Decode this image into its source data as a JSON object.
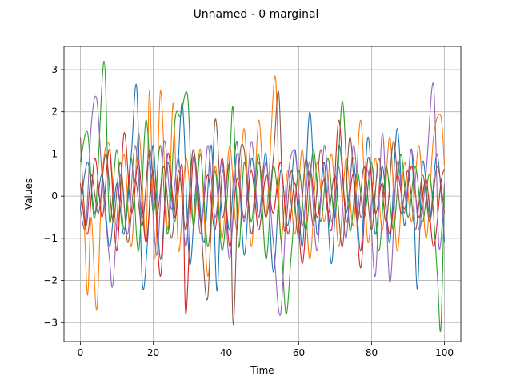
{
  "chart_data": {
    "type": "line",
    "title": "Unnamed - 0 marginal",
    "xlabel": "Time",
    "ylabel": "Values",
    "xlim": [
      -4.5,
      104.5
    ],
    "ylim": [
      -3.45,
      3.55
    ],
    "xticks": [
      0,
      20,
      40,
      60,
      80,
      100
    ],
    "yticks": [
      -3,
      -2,
      -1,
      0,
      1,
      2,
      3
    ],
    "grid": true,
    "legend": "none",
    "series": [
      {
        "color": "#1f77b4",
        "points": [
          [
            0,
            -0.3
          ],
          [
            2,
            0.8
          ],
          [
            4,
            -0.4
          ],
          [
            6,
            0.5
          ],
          [
            8,
            -1.2
          ],
          [
            10,
            0.3
          ],
          [
            12,
            -0.9
          ],
          [
            14,
            1.0
          ],
          [
            15.5,
            2.55
          ],
          [
            17,
            -2.05
          ],
          [
            18.5,
            -1.0
          ],
          [
            20,
            1.2
          ],
          [
            22,
            -1.5
          ],
          [
            24,
            0.8
          ],
          [
            26,
            -0.6
          ],
          [
            28,
            2.2
          ],
          [
            30,
            -1.6
          ],
          [
            32,
            0.4
          ],
          [
            34,
            -1.1
          ],
          [
            36,
            1.2
          ],
          [
            37.5,
            -2.25
          ],
          [
            39,
            0.6
          ],
          [
            41,
            -0.8
          ],
          [
            43,
            1.3
          ],
          [
            45,
            -1.4
          ],
          [
            47,
            0.9
          ],
          [
            49,
            -0.5
          ],
          [
            51,
            1.0
          ],
          [
            53,
            -1.8
          ],
          [
            55,
            0.6
          ],
          [
            57,
            -0.7
          ],
          [
            59,
            1.1
          ],
          [
            61,
            -1.2
          ],
          [
            63,
            2.0
          ],
          [
            65,
            -0.9
          ],
          [
            67,
            0.8
          ],
          [
            69,
            -1.6
          ],
          [
            71,
            1.2
          ],
          [
            73,
            -0.4
          ],
          [
            75,
            0.9
          ],
          [
            77,
            -1.3
          ],
          [
            79,
            1.4
          ],
          [
            81,
            -0.9
          ],
          [
            83,
            0.7
          ],
          [
            85,
            -1.1
          ],
          [
            87,
            1.6
          ],
          [
            89,
            -0.7
          ],
          [
            91,
            1.1
          ],
          [
            92.5,
            -2.2
          ],
          [
            94,
            0.8
          ],
          [
            96,
            -0.5
          ],
          [
            98,
            1.0
          ],
          [
            100,
            -1.1
          ]
        ]
      },
      {
        "color": "#ff7f0e",
        "points": [
          [
            0,
            0.3
          ],
          [
            1,
            -0.6
          ],
          [
            2,
            -2.35
          ],
          [
            3,
            -0.5
          ],
          [
            4.5,
            -2.7
          ],
          [
            6,
            0.5
          ],
          [
            8,
            1.2
          ],
          [
            10,
            -0.8
          ],
          [
            12,
            1.0
          ],
          [
            14,
            -1.2
          ],
          [
            16,
            1.5
          ],
          [
            18,
            -1.0
          ],
          [
            19,
            2.5
          ],
          [
            20.5,
            -1.5
          ],
          [
            22,
            2.5
          ],
          [
            24,
            -0.8
          ],
          [
            25.5,
            2.2
          ],
          [
            27,
            -1.3
          ],
          [
            29,
            0.9
          ],
          [
            31,
            -0.6
          ],
          [
            33,
            1.1
          ],
          [
            35,
            -1.9
          ],
          [
            37,
            0.7
          ],
          [
            39,
            -1.0
          ],
          [
            41,
            1.2
          ],
          [
            43,
            -0.8
          ],
          [
            45,
            1.6
          ],
          [
            47,
            -1.2
          ],
          [
            49,
            1.8
          ],
          [
            51,
            -0.5
          ],
          [
            53.5,
            2.85
          ],
          [
            55,
            -1.0
          ],
          [
            57,
            0.6
          ],
          [
            59,
            -0.9
          ],
          [
            61,
            1.1
          ],
          [
            63,
            -1.5
          ],
          [
            65,
            0.8
          ],
          [
            67,
            -0.6
          ],
          [
            69,
            1.0
          ],
          [
            71,
            -1.2
          ],
          [
            73,
            0.9
          ],
          [
            75,
            -0.7
          ],
          [
            77,
            1.8
          ],
          [
            79,
            -1.1
          ],
          [
            81,
            0.9
          ],
          [
            83,
            -0.8
          ],
          [
            85,
            1.4
          ],
          [
            87,
            -1.3
          ],
          [
            89,
            0.8
          ],
          [
            91,
            -0.6
          ],
          [
            93,
            1.2
          ],
          [
            95,
            -1.0
          ],
          [
            97,
            1.4
          ],
          [
            99,
            1.9
          ],
          [
            100,
            0.7
          ]
        ]
      },
      {
        "color": "#2ca02c",
        "points": [
          [
            0,
            0.8
          ],
          [
            2,
            1.5
          ],
          [
            4,
            -0.5
          ],
          [
            6.5,
            3.2
          ],
          [
            8,
            -0.6
          ],
          [
            10,
            1.1
          ],
          [
            12,
            -0.8
          ],
          [
            14,
            0.9
          ],
          [
            16,
            -1.3
          ],
          [
            18,
            1.8
          ],
          [
            20,
            -0.4
          ],
          [
            22,
            1.2
          ],
          [
            24,
            -0.9
          ],
          [
            26,
            1.8
          ],
          [
            27.5,
            1.9
          ],
          [
            29.5,
            2.35
          ],
          [
            31,
            -0.7
          ],
          [
            33,
            1.0
          ],
          [
            35,
            -1.2
          ],
          [
            37,
            0.6
          ],
          [
            39,
            -1.3
          ],
          [
            41,
            0.9
          ],
          [
            42,
            2.05
          ],
          [
            43.5,
            -1.2
          ],
          [
            45,
            0.8
          ],
          [
            47,
            -0.6
          ],
          [
            49,
            1.0
          ],
          [
            51,
            -1.5
          ],
          [
            53,
            0.7
          ],
          [
            55,
            -0.9
          ],
          [
            56.5,
            -2.8
          ],
          [
            58,
            -1.3
          ],
          [
            60,
            0.6
          ],
          [
            62,
            -0.8
          ],
          [
            64,
            1.1
          ],
          [
            66,
            -0.6
          ],
          [
            68,
            0.9
          ],
          [
            70,
            -0.5
          ],
          [
            72,
            2.25
          ],
          [
            74,
            -0.8
          ],
          [
            76,
            0.6
          ],
          [
            78,
            -0.5
          ],
          [
            80,
            0.8
          ],
          [
            82,
            -1.3
          ],
          [
            84,
            0.7
          ],
          [
            86,
            -0.8
          ],
          [
            88,
            1.0
          ],
          [
            90,
            -0.5
          ],
          [
            92,
            0.7
          ],
          [
            94,
            -0.6
          ],
          [
            96,
            0.5
          ],
          [
            98,
            -1.8
          ],
          [
            99,
            -3.15
          ],
          [
            100,
            0.2
          ]
        ]
      },
      {
        "color": "#d62728",
        "points": [
          [
            0,
            0.3
          ],
          [
            2,
            -0.9
          ],
          [
            4,
            0.9
          ],
          [
            6,
            -0.5
          ],
          [
            8,
            1.1
          ],
          [
            10,
            -1.3
          ],
          [
            12,
            1.5
          ],
          [
            14,
            -0.4
          ],
          [
            16,
            0.8
          ],
          [
            18,
            -1.1
          ],
          [
            20,
            0.6
          ],
          [
            22,
            -1.9
          ],
          [
            24,
            1.0
          ],
          [
            26,
            -0.5
          ],
          [
            28,
            0.7
          ],
          [
            29,
            -2.8
          ],
          [
            31,
            0.9
          ],
          [
            33,
            -0.6
          ],
          [
            35,
            0.5
          ],
          [
            37,
            -0.8
          ],
          [
            39,
            0.9
          ],
          [
            41,
            -1.2
          ],
          [
            43,
            0.4
          ],
          [
            45,
            -0.5
          ],
          [
            47,
            0.6
          ],
          [
            49,
            -0.8
          ],
          [
            51,
            0.5
          ],
          [
            53,
            -0.4
          ],
          [
            55,
            0.8
          ],
          [
            57,
            -0.9
          ],
          [
            59,
            0.3
          ],
          [
            61,
            -1.6
          ],
          [
            63,
            0.6
          ],
          [
            65,
            -0.5
          ],
          [
            67,
            0.4
          ],
          [
            69,
            -0.8
          ],
          [
            71,
            1.8
          ],
          [
            73,
            -0.6
          ],
          [
            75,
            0.5
          ],
          [
            77,
            -1.7
          ],
          [
            79,
            0.9
          ],
          [
            81,
            -0.4
          ],
          [
            83,
            0.3
          ],
          [
            85,
            -0.9
          ],
          [
            87,
            0.5
          ],
          [
            89,
            -0.3
          ],
          [
            91,
            0.7
          ],
          [
            93,
            -0.5
          ],
          [
            95,
            0.4
          ],
          [
            97,
            -1.2
          ],
          [
            99,
            0.3
          ],
          [
            100,
            0.65
          ]
        ]
      },
      {
        "color": "#9467bd",
        "points": [
          [
            0,
            -0.3
          ],
          [
            1.5,
            -0.7
          ],
          [
            3,
            1.7
          ],
          [
            4.5,
            2.3
          ],
          [
            6,
            0.4
          ],
          [
            8,
            -1.5
          ],
          [
            9,
            -2.05
          ],
          [
            11,
            0.5
          ],
          [
            13,
            -0.9
          ],
          [
            15,
            1.2
          ],
          [
            17,
            -0.5
          ],
          [
            19,
            0.8
          ],
          [
            21,
            -1.4
          ],
          [
            23,
            1.3
          ],
          [
            25,
            -0.3
          ],
          [
            27,
            0.9
          ],
          [
            29,
            -1.2
          ],
          [
            31,
            1.1
          ],
          [
            33,
            -0.9
          ],
          [
            35,
            1.2
          ],
          [
            37,
            -0.5
          ],
          [
            39,
            0.8
          ],
          [
            41,
            -1.5
          ],
          [
            43,
            1.0
          ],
          [
            45,
            -0.6
          ],
          [
            47,
            1.3
          ],
          [
            49,
            -0.5
          ],
          [
            51,
            0.8
          ],
          [
            53,
            -1.1
          ],
          [
            55,
            -2.8
          ],
          [
            57,
            0.4
          ],
          [
            59,
            1.0
          ],
          [
            61,
            -0.7
          ],
          [
            63,
            0.8
          ],
          [
            65,
            -1.3
          ],
          [
            67,
            1.2
          ],
          [
            69,
            -0.6
          ],
          [
            71,
            0.7
          ],
          [
            73,
            -1.0
          ],
          [
            75,
            1.2
          ],
          [
            77,
            -0.5
          ],
          [
            79,
            0.6
          ],
          [
            81,
            -1.9
          ],
          [
            83,
            1.5
          ],
          [
            85,
            -2.05
          ],
          [
            87,
            0.8
          ],
          [
            89,
            -0.4
          ],
          [
            91,
            1.1
          ],
          [
            93,
            -0.8
          ],
          [
            95,
            0.6
          ],
          [
            97,
            2.65
          ],
          [
            98.5,
            -1.2
          ],
          [
            100,
            0.3
          ]
        ]
      },
      {
        "color": "#8c564b",
        "points": [
          [
            0,
            1.4
          ],
          [
            1.5,
            -0.7
          ],
          [
            3,
            0.5
          ],
          [
            5,
            -0.4
          ],
          [
            7,
            1.0
          ],
          [
            9,
            -0.6
          ],
          [
            11,
            0.8
          ],
          [
            13,
            -1.1
          ],
          [
            15,
            0.4
          ],
          [
            17,
            -0.7
          ],
          [
            19,
            1.1
          ],
          [
            21,
            -0.4
          ],
          [
            23,
            0.7
          ],
          [
            25,
            -1.0
          ],
          [
            27,
            0.6
          ],
          [
            29,
            -0.8
          ],
          [
            31,
            1.1
          ],
          [
            33,
            -0.6
          ],
          [
            35,
            -2.4
          ],
          [
            37,
            1.8
          ],
          [
            39,
            -0.5
          ],
          [
            41,
            0.7
          ],
          [
            42,
            -3.05
          ],
          [
            43.5,
            0.6
          ],
          [
            45,
            1.1
          ],
          [
            47,
            -0.9
          ],
          [
            49,
            0.8
          ],
          [
            51,
            -0.5
          ],
          [
            53,
            0.9
          ],
          [
            54.5,
            2.45
          ],
          [
            56,
            -0.8
          ],
          [
            58,
            0.6
          ],
          [
            60,
            -1.0
          ],
          [
            62,
            0.9
          ],
          [
            64,
            -0.7
          ],
          [
            66,
            1.1
          ],
          [
            68,
            -0.4
          ],
          [
            70,
            0.5
          ],
          [
            72,
            -1.2
          ],
          [
            74,
            1.4
          ],
          [
            76,
            -0.6
          ],
          [
            78,
            0.7
          ],
          [
            80,
            -0.8
          ],
          [
            82,
            0.9
          ],
          [
            84,
            -0.6
          ],
          [
            86,
            1.3
          ],
          [
            88,
            -0.4
          ],
          [
            90,
            0.6
          ],
          [
            92,
            -0.8
          ],
          [
            94,
            0.5
          ],
          [
            96,
            -0.6
          ],
          [
            98,
            0.7
          ],
          [
            100,
            -0.4
          ]
        ]
      }
    ]
  }
}
